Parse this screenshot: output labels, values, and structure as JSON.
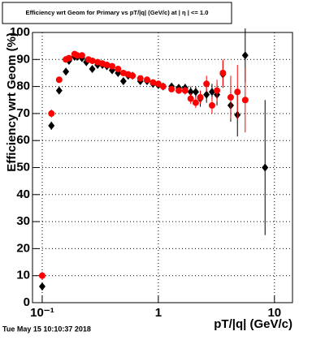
{
  "chart_data": {
    "type": "scatter",
    "title": "Efficiency wrt Geom for Primary vs pT/|q| (GeV/c) at | η | <= 1.0",
    "x_label": "pT/|q| (GeV/c)",
    "y_label": "Efficiency wrt Geom (%)",
    "footer": "Tue May 15 10:10:37 2018",
    "xscale": "log",
    "grid": true,
    "xlim": [
      0.0825,
      14.3
    ],
    "ylim": [
      0,
      100
    ],
    "xticks": [
      {
        "value": 0.1,
        "label": "10⁻¹"
      },
      1,
      10
    ],
    "yticks": [
      0,
      10,
      20,
      30,
      40,
      50,
      60,
      70,
      80,
      90,
      100
    ],
    "series": [
      {
        "name": "black",
        "color": "#000000",
        "marker": "diamond",
        "x": [
          0.1,
          0.12,
          0.14,
          0.16,
          0.17,
          0.19,
          0.2,
          0.22,
          0.24,
          0.27,
          0.3,
          0.33,
          0.36,
          0.4,
          0.45,
          0.5,
          0.55,
          0.6,
          0.7,
          0.8,
          0.9,
          1.0,
          1.1,
          1.3,
          1.5,
          1.7,
          1.9,
          2.1,
          2.3,
          2.6,
          2.9,
          3.2,
          3.6,
          4.2,
          4.8,
          5.6,
          8.3
        ],
        "values": [
          6,
          65.5,
          78.5,
          85.5,
          89.5,
          91,
          91,
          90.5,
          89,
          86.5,
          88,
          88,
          87.5,
          86,
          85,
          82,
          84,
          84,
          82,
          82,
          81,
          80.5,
          80,
          80,
          79.5,
          79.5,
          78,
          78,
          75.5,
          77,
          78,
          77,
          84.5,
          73,
          69.5,
          91.5,
          50
        ],
        "errors": [
          1.5,
          1.5,
          1,
          1,
          0.8,
          0.7,
          0.7,
          0.6,
          0.6,
          0.6,
          0.6,
          0.6,
          0.6,
          0.6,
          0.6,
          0.6,
          0.6,
          0.6,
          0.6,
          0.7,
          0.8,
          0.8,
          0.9,
          1,
          1.2,
          1.5,
          2,
          2,
          3,
          3,
          3,
          4,
          5,
          6,
          8,
          10,
          25
        ]
      },
      {
        "name": "red",
        "color": "#ff0000",
        "marker": "circle",
        "x": [
          0.1,
          0.12,
          0.14,
          0.16,
          0.17,
          0.19,
          0.2,
          0.22,
          0.25,
          0.27,
          0.3,
          0.33,
          0.36,
          0.4,
          0.45,
          0.5,
          0.55,
          0.6,
          0.7,
          0.8,
          0.9,
          1.0,
          1.1,
          1.3,
          1.5,
          1.7,
          1.9,
          2.1,
          2.3,
          2.6,
          2.9,
          3.2,
          3.6,
          4.2,
          4.8,
          5.6
        ],
        "values": [
          10,
          70,
          82.5,
          90,
          90.5,
          92,
          91.5,
          91.5,
          90,
          89.5,
          89,
          88.5,
          88,
          87.5,
          86.5,
          85,
          84.5,
          84,
          83,
          82.5,
          81.5,
          81,
          80,
          79,
          78.5,
          78.5,
          75.5,
          74,
          76,
          81,
          73,
          78.5,
          85,
          76,
          78,
          75
        ],
        "errors": [
          1.5,
          1.5,
          1,
          0.8,
          0.7,
          0.6,
          0.6,
          0.6,
          0.6,
          0.6,
          0.6,
          0.6,
          0.6,
          0.6,
          0.6,
          0.6,
          0.6,
          0.6,
          0.6,
          0.7,
          0.8,
          0.8,
          0.9,
          1,
          1.2,
          1.5,
          2,
          2,
          2.5,
          3,
          3,
          4,
          5,
          8,
          10,
          12
        ]
      }
    ]
  }
}
